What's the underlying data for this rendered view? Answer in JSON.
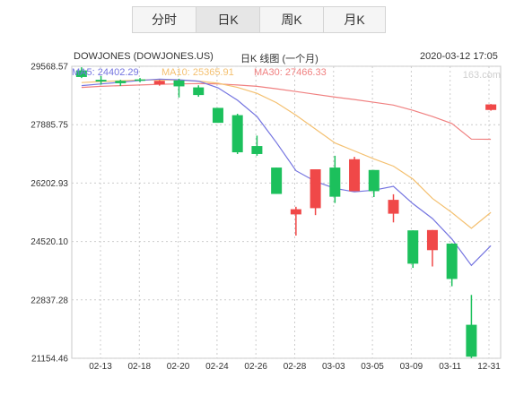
{
  "tabs": [
    "分时",
    "日K",
    "周K",
    "月K"
  ],
  "active_tab": 1,
  "header": {
    "symbol": "DOWJONES (DOWJONES.US)",
    "chart_title": "日K 线图 (一个月)",
    "datetime": "2020-03-12 17:05",
    "watermark": "163.com"
  },
  "colors": {
    "up": "#f04848",
    "down": "#1cc05c",
    "ma5": "#7474e0",
    "ma10": "#f4c070",
    "ma30": "#f08080",
    "grid": "#cccccc"
  },
  "chart_data": {
    "type": "candlestick",
    "y_ticks": [
      "29568.57",
      "27885.75",
      "26202.93",
      "24520.10",
      "22837.28",
      "21154.46"
    ],
    "ylim": [
      21154.46,
      29568.57
    ],
    "x_ticks": [
      "02-13",
      "02-18",
      "02-20",
      "02-24",
      "02-26",
      "02-28",
      "03-03",
      "03-05",
      "03-09",
      "03-11",
      "12-31"
    ],
    "ma_labels": [
      {
        "name": "MA5",
        "text": "MA5: 24402.29"
      },
      {
        "name": "MA10",
        "text": "MA10: 25365.91"
      },
      {
        "name": "MA30",
        "text": "MA30: 27466.33"
      }
    ],
    "candles": [
      {
        "open": 29450,
        "close": 29260,
        "high": 29540,
        "low": 29230
      },
      {
        "open": 29180,
        "close": 29130,
        "high": 29290,
        "low": 29040
      },
      {
        "open": 29150,
        "close": 29080,
        "high": 29180,
        "low": 29000
      },
      {
        "open": 29190,
        "close": 29150,
        "high": 29230,
        "low": 29110
      },
      {
        "open": 29050,
        "close": 29150,
        "high": 29170,
        "low": 29010
      },
      {
        "open": 29160,
        "close": 28990,
        "high": 29210,
        "low": 28670
      },
      {
        "open": 28960,
        "close": 28740,
        "high": 29020,
        "low": 28690
      },
      {
        "open": 28370,
        "close": 27940,
        "high": 28370,
        "low": 27940
      },
      {
        "open": 28160,
        "close": 27090,
        "high": 28200,
        "low": 27040
      },
      {
        "open": 27270,
        "close": 27040,
        "high": 27570,
        "low": 26990
      },
      {
        "open": 26650,
        "close": 25890,
        "high": 26650,
        "low": 25890
      },
      {
        "open": 25300,
        "close": 25450,
        "high": 25520,
        "low": 24690
      },
      {
        "open": 25480,
        "close": 26600,
        "high": 26600,
        "low": 25280
      },
      {
        "open": 26650,
        "close": 25810,
        "high": 26990,
        "low": 25630
      },
      {
        "open": 25970,
        "close": 26890,
        "high": 26960,
        "low": 25970
      },
      {
        "open": 26580,
        "close": 25970,
        "high": 26580,
        "low": 25800
      },
      {
        "open": 25320,
        "close": 25720,
        "high": 25880,
        "low": 25070
      },
      {
        "open": 24840,
        "close": 23880,
        "high": 24840,
        "low": 23760
      },
      {
        "open": 24270,
        "close": 24850,
        "high": 24850,
        "low": 23800
      },
      {
        "open": 24460,
        "close": 23440,
        "high": 24470,
        "low": 23230
      },
      {
        "open": 22120,
        "close": 21200,
        "high": 22980,
        "low": 21160
      },
      {
        "open": 28310,
        "close": 28470,
        "high": 28480,
        "low": 28290
      }
    ],
    "ma5": [
      29010,
      29060,
      29110,
      29160,
      29200,
      29180,
      29140,
      28950,
      28590,
      28120,
      27370,
      26560,
      26250,
      26050,
      25950,
      26000,
      26110,
      25610,
      25180,
      24590,
      23830,
      24400
    ],
    "ma10": [
      29100,
      29130,
      29150,
      29170,
      29180,
      29170,
      29140,
      29080,
      28960,
      28790,
      28520,
      28160,
      27760,
      27360,
      27130,
      26900,
      26690,
      26320,
      25760,
      25350,
      24900,
      25360
    ],
    "ma30": [
      28960,
      28990,
      29010,
      29030,
      29050,
      29060,
      29070,
      29060,
      29030,
      28990,
      28920,
      28840,
      28760,
      28680,
      28610,
      28530,
      28450,
      28300,
      28120,
      27920,
      27470,
      27466
    ]
  }
}
